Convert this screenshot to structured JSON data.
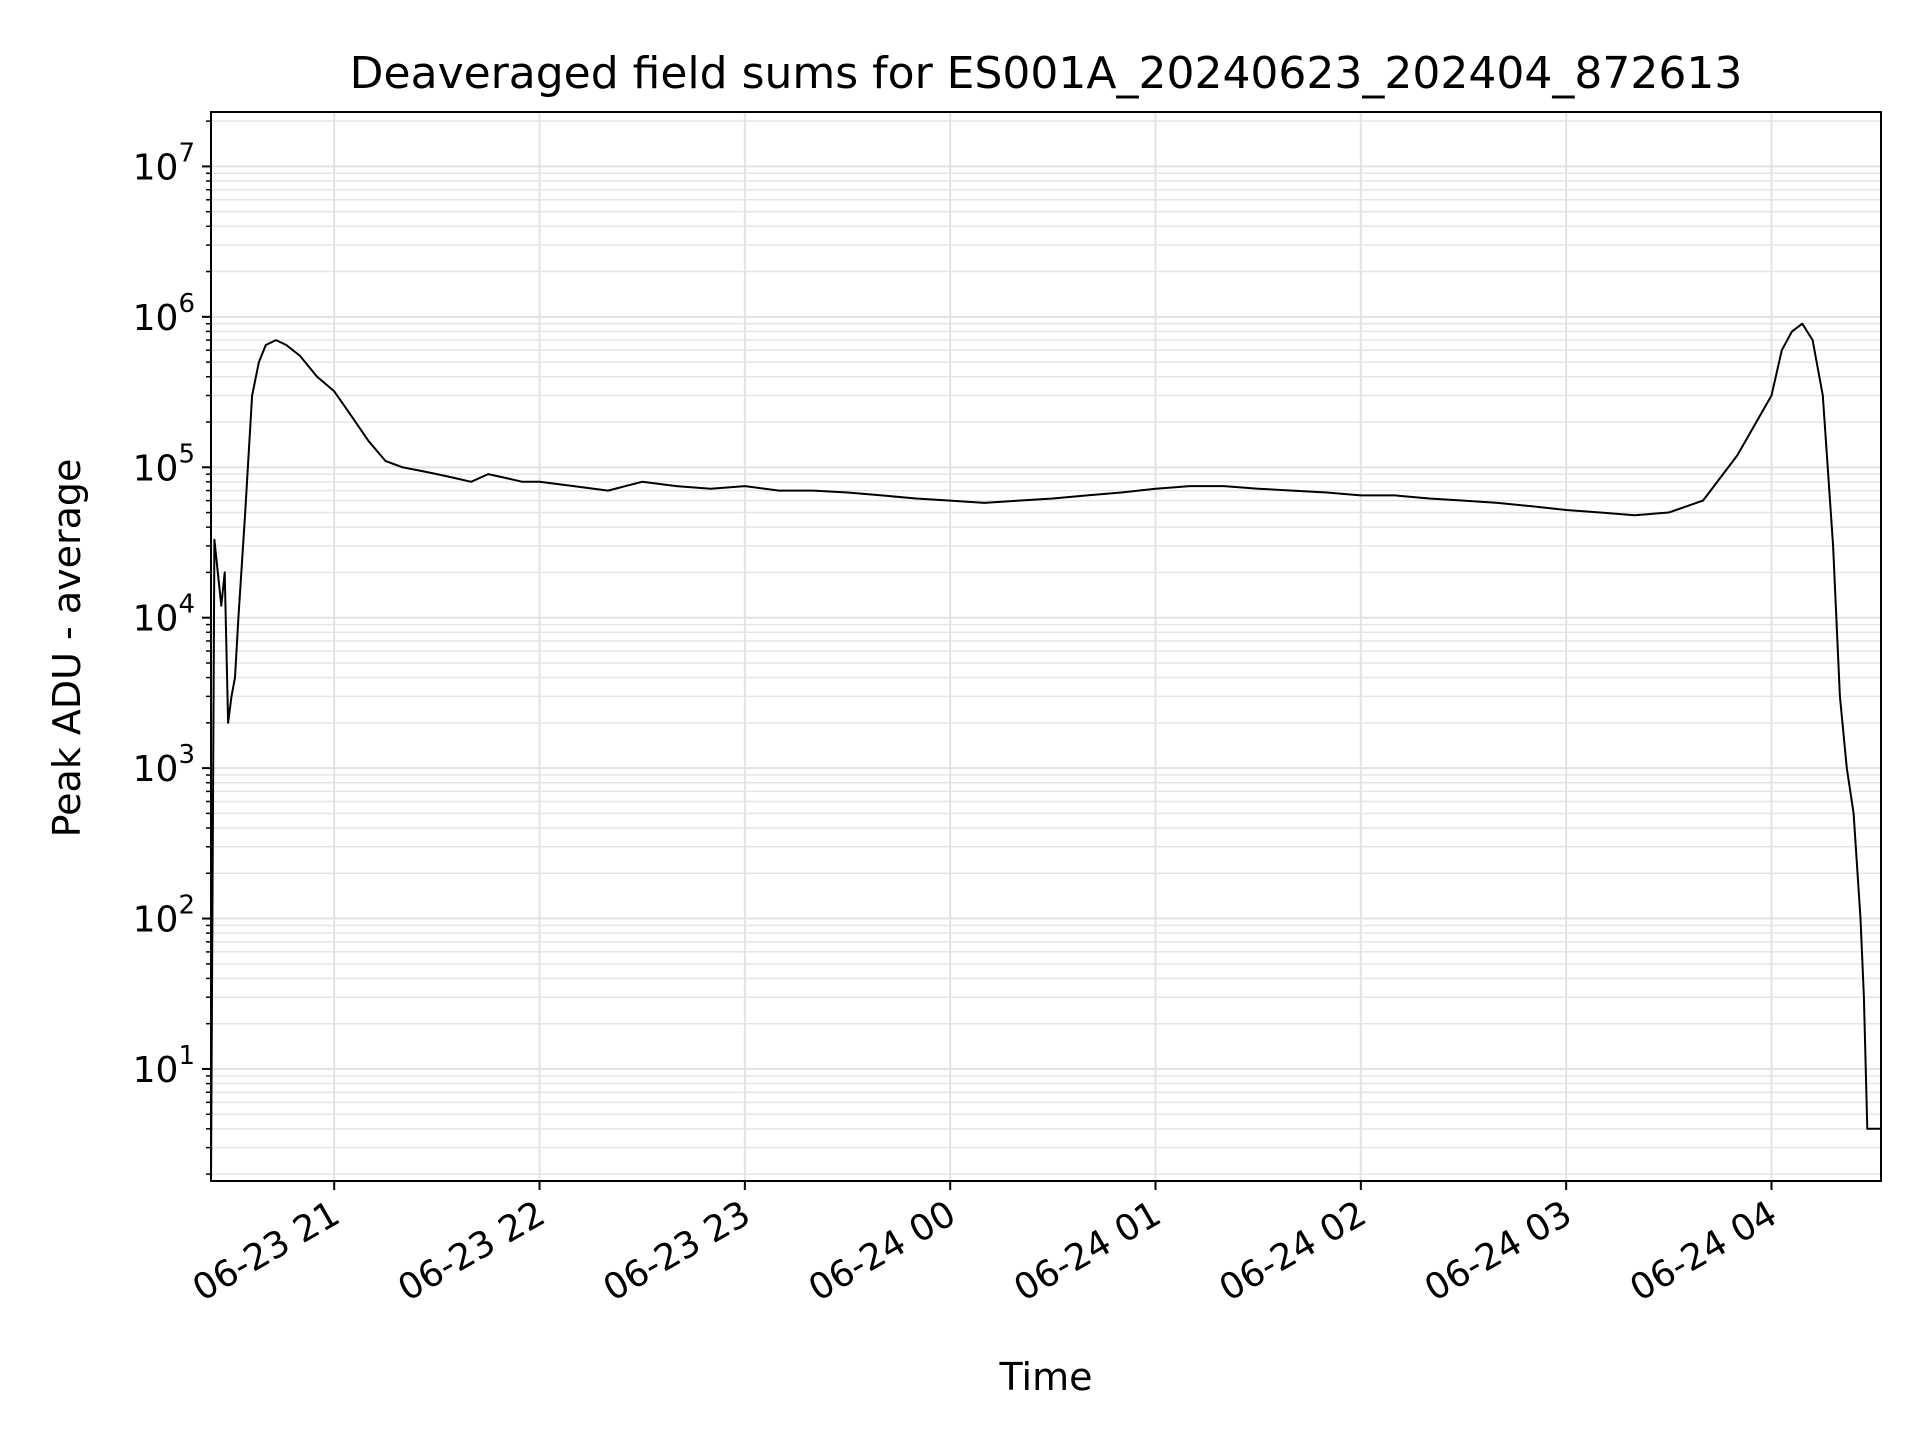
{
  "chart_data": {
    "type": "line",
    "title": "Deaveraged field sums for ES001A_20240623_202404_872613",
    "xlabel": "Time",
    "ylabel": "Peak ADU - average",
    "yscale": "log",
    "grid": true,
    "xlim": [
      "2024-06-23 20:24",
      "2024-06-24 04:32"
    ],
    "ylim": [
      1.8,
      23000000
    ],
    "x_ticks": [
      "06-23 21",
      "06-23 22",
      "06-23 23",
      "06-24 00",
      "06-24 01",
      "06-24 02",
      "06-24 03",
      "06-24 04"
    ],
    "y_ticks": [
      {
        "base": "10",
        "exp": "1"
      },
      {
        "base": "10",
        "exp": "2"
      },
      {
        "base": "10",
        "exp": "3"
      },
      {
        "base": "10",
        "exp": "4"
      },
      {
        "base": "10",
        "exp": "5"
      },
      {
        "base": "10",
        "exp": "6"
      },
      {
        "base": "10",
        "exp": "7"
      }
    ],
    "line_color": "#000000",
    "series": [
      {
        "x": [
          "2024-06-23 20:24",
          "2024-06-23 20:25",
          "2024-06-23 20:26",
          "2024-06-23 20:27",
          "2024-06-23 20:28",
          "2024-06-23 20:29",
          "2024-06-23 20:30",
          "2024-06-23 20:31",
          "2024-06-23 20:32",
          "2024-06-23 20:34",
          "2024-06-23 20:36",
          "2024-06-23 20:38",
          "2024-06-23 20:40",
          "2024-06-23 20:43",
          "2024-06-23 20:46",
          "2024-06-23 20:50",
          "2024-06-23 20:55",
          "2024-06-23 21:00",
          "2024-06-23 21:05",
          "2024-06-23 21:10",
          "2024-06-23 21:15",
          "2024-06-23 21:20",
          "2024-06-23 21:25",
          "2024-06-23 21:30",
          "2024-06-23 21:35",
          "2024-06-23 21:40",
          "2024-06-23 21:45",
          "2024-06-23 21:50",
          "2024-06-23 21:55",
          "2024-06-23 22:00",
          "2024-06-23 22:10",
          "2024-06-23 22:20",
          "2024-06-23 22:30",
          "2024-06-23 22:40",
          "2024-06-23 22:50",
          "2024-06-23 23:00",
          "2024-06-23 23:10",
          "2024-06-23 23:20",
          "2024-06-23 23:30",
          "2024-06-23 23:40",
          "2024-06-23 23:50",
          "2024-06-24 00:00",
          "2024-06-24 00:10",
          "2024-06-24 00:20",
          "2024-06-24 00:30",
          "2024-06-24 00:40",
          "2024-06-24 00:50",
          "2024-06-24 01:00",
          "2024-06-24 01:10",
          "2024-06-24 01:20",
          "2024-06-24 01:30",
          "2024-06-24 01:40",
          "2024-06-24 01:50",
          "2024-06-24 02:00",
          "2024-06-24 02:10",
          "2024-06-24 02:20",
          "2024-06-24 02:30",
          "2024-06-24 02:40",
          "2024-06-24 02:50",
          "2024-06-24 03:00",
          "2024-06-24 03:10",
          "2024-06-24 03:20",
          "2024-06-24 03:30",
          "2024-06-24 03:40",
          "2024-06-24 03:50",
          "2024-06-24 04:00",
          "2024-06-24 04:03",
          "2024-06-24 04:06",
          "2024-06-24 04:09",
          "2024-06-24 04:12",
          "2024-06-24 04:15",
          "2024-06-24 04:18",
          "2024-06-24 04:20",
          "2024-06-24 04:22",
          "2024-06-24 04:24",
          "2024-06-24 04:26",
          "2024-06-24 04:27",
          "2024-06-24 04:28",
          "2024-06-24 04:30",
          "2024-06-24 04:32"
        ],
        "y": [
          1.8,
          33000,
          20000,
          12000,
          20000,
          2000,
          3000,
          4000,
          10000,
          50000,
          300000,
          500000,
          650000,
          700000,
          650000,
          550000,
          400000,
          320000,
          220000,
          150000,
          110000,
          100000,
          95000,
          90000,
          85000,
          80000,
          90000,
          85000,
          80000,
          80000,
          75000,
          70000,
          80000,
          75000,
          72000,
          75000,
          70000,
          70000,
          68000,
          65000,
          62000,
          60000,
          58000,
          60000,
          62000,
          65000,
          68000,
          72000,
          75000,
          75000,
          72000,
          70000,
          68000,
          65000,
          65000,
          62000,
          60000,
          58000,
          55000,
          52000,
          50000,
          48000,
          50000,
          60000,
          120000,
          300000,
          600000,
          800000,
          900000,
          700000,
          300000,
          30000,
          3000,
          1000,
          500,
          100,
          30,
          4,
          4,
          4
        ]
      }
    ]
  }
}
